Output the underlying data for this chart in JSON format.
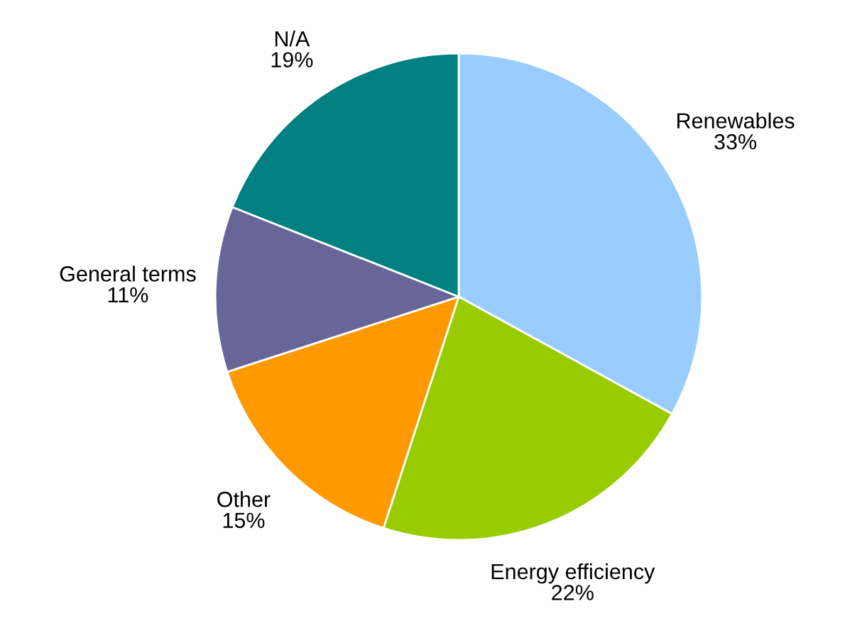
{
  "chart_data": {
    "type": "pie",
    "categories": [
      "Renewables",
      "Energy efficiency",
      "Other",
      "General terms",
      "N/A"
    ],
    "values": [
      33,
      22,
      15,
      11,
      19
    ],
    "value_labels": [
      "33%",
      "22%",
      "15%",
      "11%",
      "19%"
    ],
    "colors": [
      "#99ccff",
      "#99cc00",
      "#ff9900",
      "#666699",
      "#008080"
    ]
  }
}
